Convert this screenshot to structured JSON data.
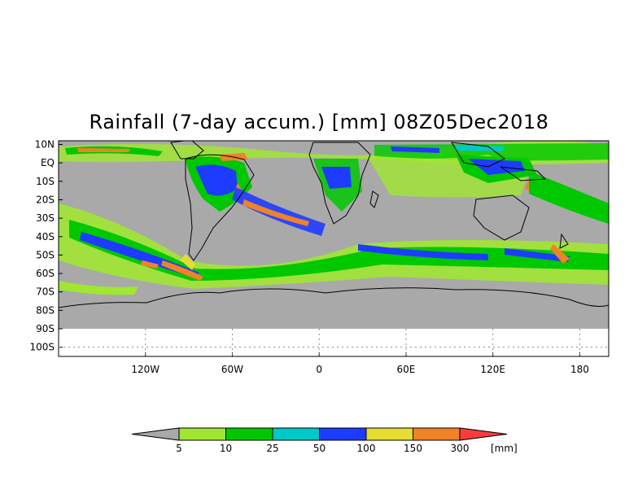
{
  "title": "Rainfall (7-day accum.) [mm] 08Z05Dec2018",
  "map": {
    "lon_range": [
      -180,
      200
    ],
    "lat_range": [
      -105,
      12
    ],
    "lat_ticks": [
      {
        "label": "10N",
        "lat": 10
      },
      {
        "label": "EQ",
        "lat": 0
      },
      {
        "label": "10S",
        "lat": -10
      },
      {
        "label": "20S",
        "lat": -20
      },
      {
        "label": "30S",
        "lat": -30
      },
      {
        "label": "40S",
        "lat": -40
      },
      {
        "label": "50S",
        "lat": -50
      },
      {
        "label": "60S",
        "lat": -60
      },
      {
        "label": "70S",
        "lat": -70
      },
      {
        "label": "80S",
        "lat": -80
      },
      {
        "label": "90S",
        "lat": -90
      },
      {
        "label": "100S",
        "lat": -100
      }
    ],
    "lon_ticks": [
      {
        "label": "120W",
        "lon": -120
      },
      {
        "label": "60W",
        "lon": -60
      },
      {
        "label": "0",
        "lon": 0
      },
      {
        "label": "60E",
        "lon": 60
      },
      {
        "label": "120E",
        "lon": 120
      },
      {
        "label": "180",
        "lon": 180
      }
    ],
    "data_extent_lat": [
      -90,
      10
    ],
    "background_color": "#a9a9a9"
  },
  "colorbar": {
    "unit": "[mm]",
    "thresholds": [
      "5",
      "10",
      "25",
      "50",
      "100",
      "150",
      "300"
    ],
    "colors": [
      "#a9a9a9",
      "#a0e632",
      "#00c800",
      "#00c8c8",
      "#1e3cff",
      "#e6dc32",
      "#f08228",
      "#fa3c3c"
    ]
  }
}
